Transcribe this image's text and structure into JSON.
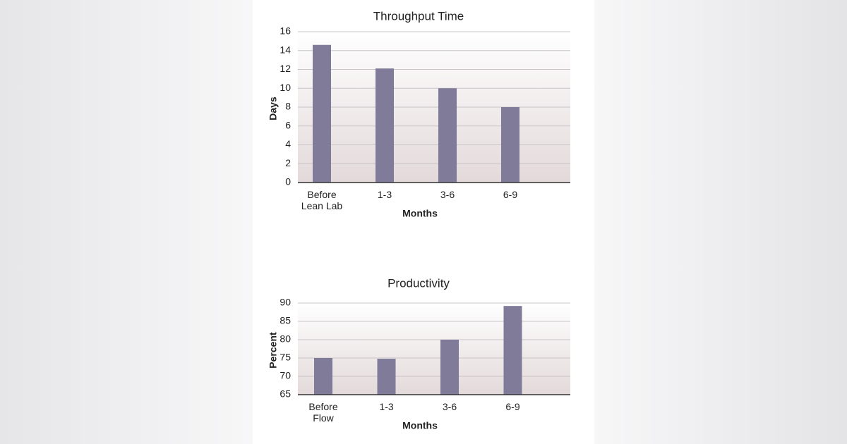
{
  "chart_data": [
    {
      "type": "bar",
      "title": "Throughput Time",
      "x_label": "Months",
      "y_label": "Days",
      "categories": [
        "Before Lean Lab",
        "1-3",
        "3-6",
        "6-9"
      ],
      "values": [
        14.6,
        12.1,
        10.0,
        8.0
      ],
      "color": "#7f7b99",
      "ylim": [
        0,
        16
      ],
      "yticks": [
        0,
        2,
        4,
        6,
        8,
        10,
        12,
        14,
        16
      ],
      "grid": true
    },
    {
      "type": "bar",
      "title": "Productivity",
      "x_label": "Months",
      "y_label": "Percent",
      "categories": [
        "Before Flow",
        "1-3",
        "3-6",
        "6-9"
      ],
      "values": [
        75,
        74.8,
        80,
        89.2
      ],
      "color": "#7f7b99",
      "ylim": [
        65,
        90
      ],
      "yticks": [
        65,
        70,
        75,
        80,
        85,
        90
      ],
      "grid": true
    }
  ]
}
